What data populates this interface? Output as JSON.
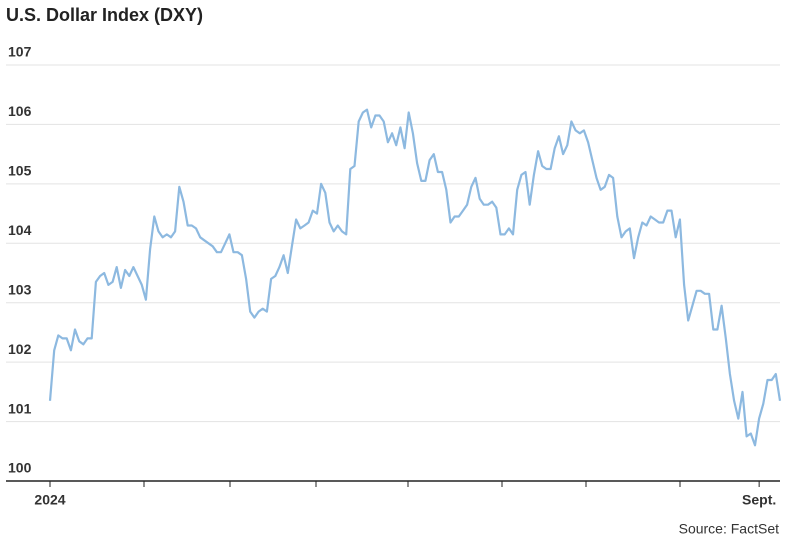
{
  "chart_data": {
    "type": "line",
    "title": "U.S. Dollar Index (DXY)",
    "source": "Source: FactSet",
    "color": "#8db9e0",
    "grid": true,
    "ylim": [
      100,
      107
    ],
    "yticks": [
      100,
      101,
      102,
      103,
      104,
      105,
      106,
      107
    ],
    "categories": [
      "2024",
      null,
      null,
      null,
      null,
      null,
      null,
      null,
      null,
      null,
      null,
      null,
      null,
      null,
      null,
      null,
      null,
      null,
      null,
      null,
      null,
      null,
      null,
      null,
      null,
      null,
      null,
      null,
      null,
      null,
      null,
      null,
      null,
      null,
      null,
      null,
      null,
      null,
      null,
      null,
      null,
      null,
      null,
      null,
      null,
      null,
      null,
      null,
      null,
      null,
      null,
      null,
      null,
      null,
      null,
      null,
      null,
      null,
      null,
      null,
      null,
      null,
      null,
      null,
      null,
      null,
      null,
      null,
      null,
      null,
      null,
      null,
      null,
      null,
      null,
      null,
      null,
      null,
      null,
      null,
      null,
      null,
      null,
      null,
      null,
      null,
      null,
      null,
      null,
      null,
      null,
      null,
      null,
      null,
      null,
      null,
      null,
      null,
      null,
      null,
      null,
      null,
      null,
      null,
      null,
      null,
      null,
      null,
      null,
      null,
      null,
      null,
      null,
      null,
      null,
      null,
      null,
      null,
      null,
      null,
      null,
      null,
      null,
      null,
      null,
      null,
      null,
      null,
      null,
      null,
      null,
      null,
      null,
      null,
      null,
      null,
      null,
      null,
      null,
      null,
      null,
      null,
      null,
      null,
      null,
      null,
      null,
      null,
      null,
      null,
      null,
      null,
      null,
      null,
      null,
      null,
      null,
      null,
      null,
      null,
      null,
      null,
      null,
      null,
      null,
      null,
      null,
      null,
      null,
      null,
      "Sept.",
      null,
      null,
      null,
      null,
      null
    ],
    "values": [
      101.35,
      102.2,
      102.45,
      102.4,
      102.4,
      102.2,
      102.55,
      102.35,
      102.3,
      102.4,
      102.4,
      103.35,
      103.45,
      103.5,
      103.3,
      103.35,
      103.6,
      103.25,
      103.55,
      103.45,
      103.6,
      103.45,
      103.3,
      103.05,
      103.9,
      104.45,
      104.2,
      104.1,
      104.15,
      104.1,
      104.2,
      104.95,
      104.7,
      104.3,
      104.3,
      104.25,
      104.1,
      104.05,
      104.0,
      103.95,
      103.85,
      103.85,
      104.0,
      104.15,
      103.85,
      103.85,
      103.8,
      103.4,
      102.85,
      102.75,
      102.85,
      102.9,
      102.85,
      103.4,
      103.45,
      103.6,
      103.8,
      103.5,
      103.95,
      104.4,
      104.25,
      104.3,
      104.35,
      104.55,
      104.5,
      105.0,
      104.85,
      104.35,
      104.2,
      104.3,
      104.2,
      104.15,
      105.25,
      105.3,
      106.05,
      106.2,
      106.25,
      105.95,
      106.15,
      106.15,
      106.05,
      105.7,
      105.85,
      105.65,
      105.95,
      105.6,
      106.2,
      105.85,
      105.35,
      105.05,
      105.05,
      105.4,
      105.5,
      105.2,
      105.2,
      104.9,
      104.35,
      104.45,
      104.45,
      104.55,
      104.65,
      104.95,
      105.1,
      104.75,
      104.65,
      104.65,
      104.7,
      104.6,
      104.15,
      104.15,
      104.25,
      104.15,
      104.9,
      105.15,
      105.2,
      104.65,
      105.15,
      105.55,
      105.3,
      105.25,
      105.25,
      105.6,
      105.8,
      105.5,
      105.65,
      106.05,
      105.9,
      105.85,
      105.9,
      105.7,
      105.4,
      105.1,
      104.9,
      104.95,
      105.15,
      105.1,
      104.45,
      104.1,
      104.2,
      104.25,
      103.75,
      104.1,
      104.35,
      104.3,
      104.45,
      104.4,
      104.35,
      104.35,
      104.55,
      104.55,
      104.1,
      104.4,
      103.3,
      102.7,
      102.95,
      103.2,
      103.2,
      103.15,
      103.15,
      102.55,
      102.55,
      102.95,
      102.4,
      101.8,
      101.35,
      101.05,
      101.5,
      100.75,
      100.8,
      100.6,
      101.05,
      101.3,
      101.7,
      101.7,
      101.8,
      101.35
    ]
  }
}
